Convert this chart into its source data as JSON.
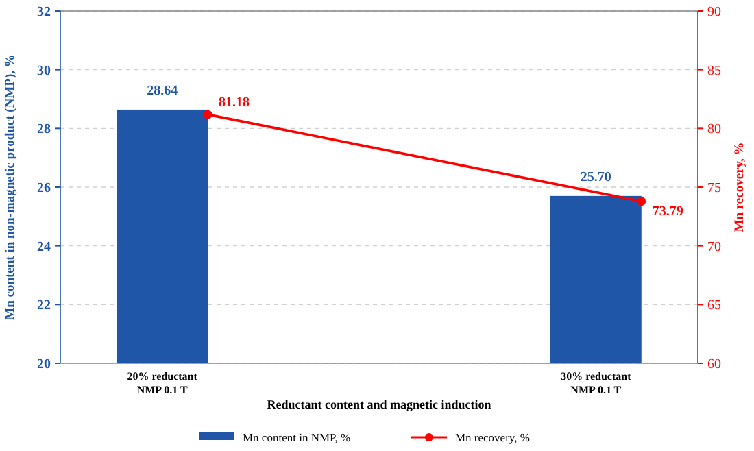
{
  "chart_data": {
    "type": "bar",
    "categories": [
      "20% reductant\nNMP 0.1 T",
      "30% reductant\nNMP 0.1 T"
    ],
    "xlabel": "Reductant content and magnetic induction",
    "ylabel": "Mn content in non-magnetic product (NMP), %",
    "y2label": "Mn recovery, %",
    "ylim": [
      20,
      32
    ],
    "yticks": [
      20,
      22,
      24,
      26,
      28,
      30,
      32
    ],
    "y2lim": [
      60,
      90
    ],
    "y2ticks": [
      60,
      65,
      70,
      75,
      80,
      85,
      90
    ],
    "grid": "y",
    "legend": "bottom",
    "data_labels": true,
    "series": [
      {
        "name": "Mn content in NMP, %",
        "color": "#1f56a8",
        "values": [
          28.64,
          25.7
        ],
        "value_labels": [
          "28.64",
          "25.70"
        ]
      },
      {
        "name": "Mn recovery, %",
        "type": "line",
        "axis": "y2",
        "color": "#ff0000",
        "marker": "circle",
        "line_style": "solid",
        "values": [
          81.18,
          73.79
        ],
        "value_labels": [
          "81.18",
          "73.79"
        ]
      }
    ]
  }
}
